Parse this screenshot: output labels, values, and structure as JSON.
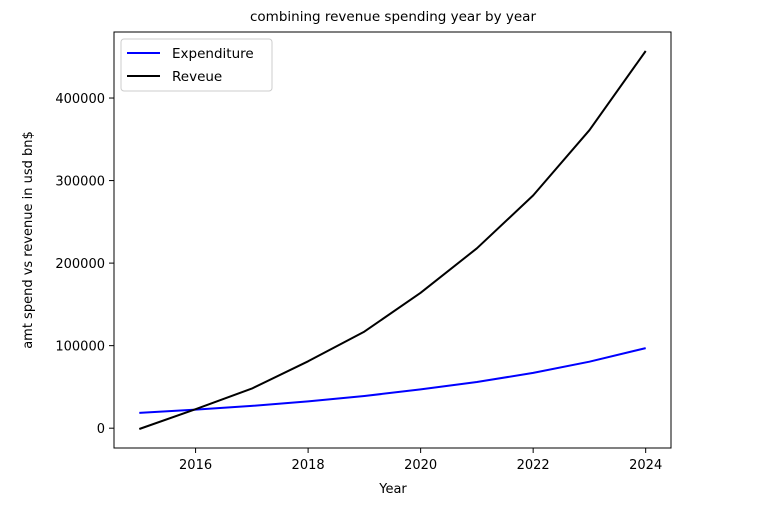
{
  "chart_data": {
    "type": "line",
    "title": "combining revenue spending year by year",
    "xlabel": "Year",
    "ylabel": "amt spend vs revenue in usd bn$",
    "x": [
      2015,
      2016,
      2017,
      2018,
      2019,
      2020,
      2021,
      2022,
      2023,
      2024
    ],
    "xticks": [
      2016,
      2018,
      2020,
      2022,
      2024
    ],
    "yticks": [
      0,
      100000,
      200000,
      300000,
      400000
    ],
    "xlim": [
      2014.55,
      2024.45
    ],
    "ylim": [
      -24000,
      480000
    ],
    "grid": false,
    "legend_position": "upper-left",
    "series": [
      {
        "name": "Expenditure",
        "color": "#0000ff",
        "values": [
          18500,
          22500,
          27000,
          32500,
          39000,
          47000,
          56000,
          67000,
          80500,
          97000
        ]
      },
      {
        "name": "Reveue",
        "color": "#000000",
        "values": [
          -1000,
          23000,
          48000,
          81000,
          117000,
          164000,
          218000,
          282000,
          361000,
          457000
        ]
      }
    ]
  }
}
